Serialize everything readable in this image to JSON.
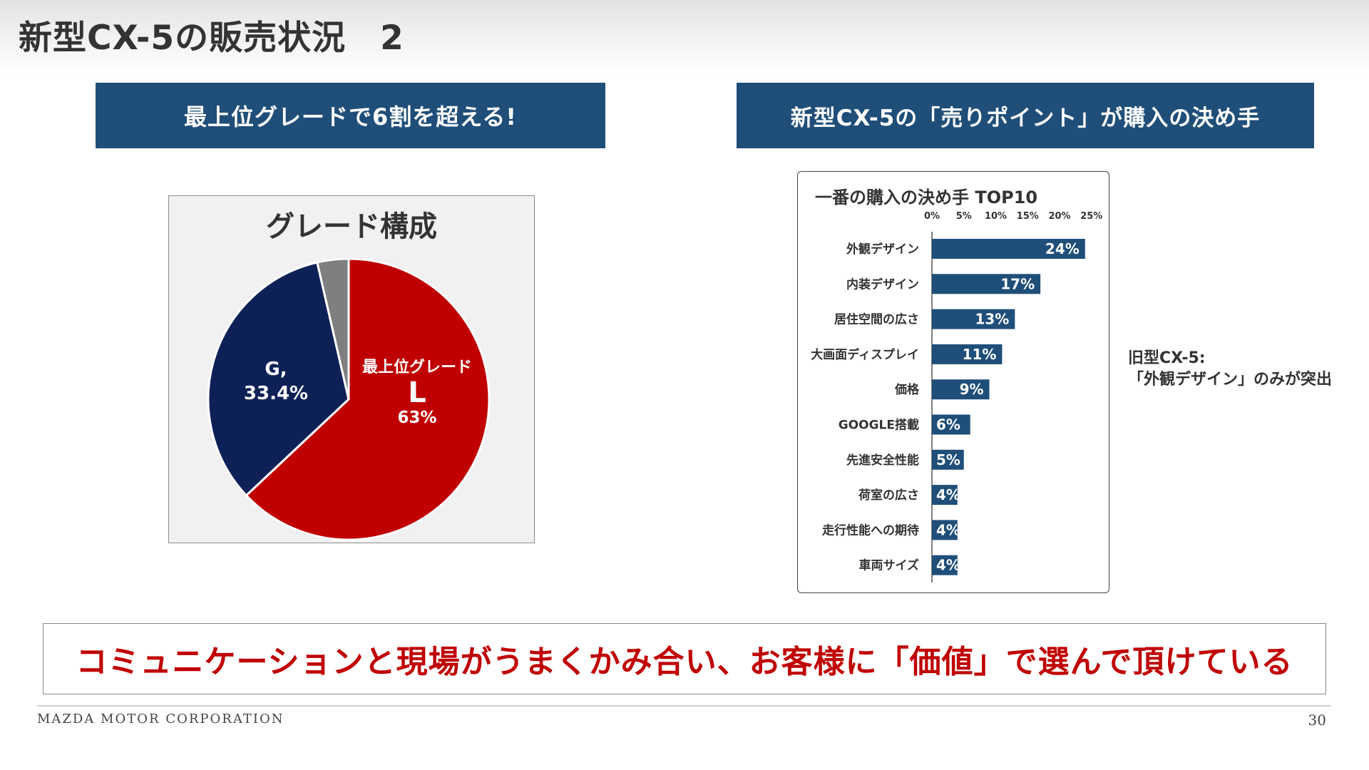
{
  "slide": {
    "title": "新型CX-5の販売状況　2",
    "left_banner": "最上位グレードで6割を超える!",
    "right_banner": "新型CX-5の「売りポイント」が購入の決め手",
    "side_note_line1": "旧型CX-5:",
    "side_note_line2": "「外観デザイン」のみが突出",
    "conclusion": "コミュニケーションと現場がうまくかみ合い、お客様に「価値」で選んで頂けている",
    "footer_company": "MAZDA MOTOR CORPORATION",
    "page_number": "30"
  },
  "colors": {
    "banner_bg": "#1f4e79",
    "grade_L": "#c00000",
    "grade_G": "#0e2157",
    "grade_other": "#7f7f7f",
    "bar": "#1f4e79",
    "conclusion_text": "#c00000"
  },
  "chart_data": [
    {
      "type": "pie",
      "title": "グレード構成",
      "slices": [
        {
          "label_line1": "最上位グレード",
          "label_line2": "L",
          "label_value": "63%",
          "value": 63.0,
          "color": "#c00000"
        },
        {
          "label_line1": "G,",
          "label_value": "33.4%",
          "value": 33.4,
          "color": "#0e2157"
        },
        {
          "value": 3.6,
          "color": "#7f7f7f"
        }
      ]
    },
    {
      "type": "bar",
      "orientation": "horizontal",
      "title": "一番の購入の決め手 TOP10",
      "categories": [
        "外観デザイン",
        "内装デザイン",
        "居住空間の広さ",
        "大画面ディスプレイ",
        "価格",
        "GOOGLE搭載",
        "先進安全性能",
        "荷室の広さ",
        "走行性能への期待",
        "車両サイズ"
      ],
      "values": [
        24,
        17,
        13,
        11,
        9,
        6,
        5,
        4,
        4,
        4
      ],
      "value_labels": [
        "24%",
        "17%",
        "13%",
        "11%",
        "9%",
        "6%",
        "5%",
        "4%",
        "4%",
        "4%"
      ],
      "xticks": [
        "0%",
        "5%",
        "10%",
        "15%",
        "20%",
        "25%"
      ],
      "xlim": [
        0,
        25
      ],
      "grid": false
    }
  ]
}
